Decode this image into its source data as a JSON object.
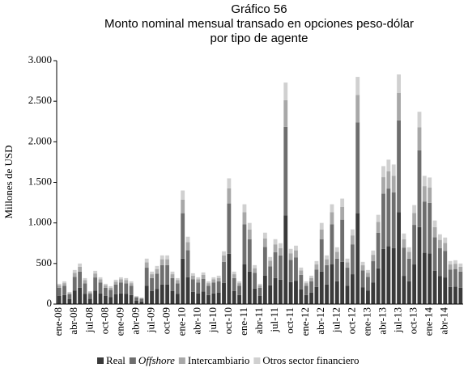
{
  "chart_data": {
    "type": "stacked_bar",
    "title": "Gráfico 56",
    "subtitle": [
      "Monto nominal mensual transado en opciones peso-dólar",
      "por tipo de agente"
    ],
    "y_label": "Millones de USD",
    "categories": [
      "ene-08",
      null,
      null,
      "abr-08",
      null,
      null,
      "jul-08",
      null,
      null,
      "oct-08",
      null,
      null,
      "ene-09",
      null,
      null,
      "abr-09",
      null,
      null,
      "jul-09",
      null,
      null,
      "oct-09",
      null,
      null,
      "ene-10",
      null,
      null,
      "abr-10",
      null,
      null,
      "jul-10",
      null,
      null,
      "oct-10",
      null,
      null,
      "ene-11",
      null,
      null,
      "abr-11",
      null,
      null,
      "jul-11",
      null,
      null,
      "oct-11",
      null,
      null,
      "ene-12",
      null,
      null,
      "abr-12",
      null,
      null,
      "jul-12",
      null,
      null,
      "oct-12",
      null,
      null,
      "ene-13",
      null,
      null,
      "abr-13",
      null,
      null,
      "jul-13",
      null,
      null,
      "oct-13",
      null,
      null,
      "ene-14",
      null,
      null,
      "abr-14",
      null,
      null,
      null
    ],
    "series": [
      {
        "name": "Real",
        "color": "#3a3a3a",
        "values": [
          100,
          112,
          60,
          168,
          200,
          128,
          64,
          164,
          132,
          100,
          88,
          120,
          132,
          128,
          112,
          40,
          32,
          224,
          160,
          188,
          240,
          240,
          160,
          128,
          560,
          332,
          152,
          132,
          156,
          112,
          132,
          140,
          260,
          620,
          160,
          112,
          492,
          400,
          192,
          100,
          352,
          232,
          320,
          300,
          1092,
          272,
          288,
          180,
          112,
          140,
          212,
          400,
          240,
          492,
          280,
          520,
          224,
          368,
          1120,
          208,
          168,
          264,
          440,
          680,
          712,
          688,
          1132,
          348,
          280,
          488,
          948,
          632,
          624,
          412,
          344,
          328,
          212,
          216,
          200
        ]
      },
      {
        "name": "Offshore",
        "color": "#6e6e6e",
        "values": [
          100,
          112,
          60,
          168,
          200,
          128,
          64,
          164,
          132,
          100,
          88,
          120,
          132,
          128,
          112,
          40,
          32,
          224,
          160,
          188,
          240,
          240,
          160,
          128,
          560,
          332,
          152,
          132,
          156,
          112,
          132,
          140,
          260,
          620,
          160,
          112,
          492,
          400,
          192,
          100,
          352,
          232,
          320,
          300,
          1092,
          272,
          288,
          180,
          112,
          140,
          212,
          400,
          240,
          492,
          280,
          520,
          224,
          368,
          1120,
          208,
          168,
          264,
          440,
          680,
          712,
          688,
          1132,
          348,
          280,
          488,
          948,
          632,
          624,
          412,
          344,
          328,
          212,
          216,
          200
        ]
      },
      {
        "name": "Intercambiario",
        "color": "#a8a8a8",
        "values": [
          30,
          34,
          18,
          50,
          60,
          38,
          19,
          49,
          40,
          30,
          26,
          36,
          40,
          38,
          34,
          12,
          10,
          67,
          48,
          56,
          72,
          72,
          48,
          38,
          168,
          100,
          46,
          40,
          47,
          34,
          40,
          42,
          78,
          186,
          48,
          34,
          148,
          120,
          58,
          30,
          106,
          70,
          96,
          90,
          328,
          82,
          86,
          54,
          34,
          42,
          64,
          120,
          72,
          148,
          84,
          156,
          67,
          110,
          336,
          62,
          50,
          79,
          132,
          204,
          214,
          206,
          340,
          104,
          84,
          146,
          284,
          190,
          187,
          124,
          103,
          98,
          64,
          65,
          60
        ]
      },
      {
        "name": "Otros sector financiero",
        "color": "#d0d0d0",
        "values": [
          20,
          22,
          12,
          34,
          40,
          26,
          13,
          33,
          26,
          20,
          18,
          24,
          26,
          26,
          22,
          8,
          6,
          45,
          32,
          38,
          48,
          48,
          32,
          26,
          112,
          66,
          30,
          26,
          31,
          22,
          26,
          28,
          52,
          124,
          32,
          22,
          98,
          80,
          38,
          20,
          70,
          46,
          64,
          60,
          218,
          54,
          58,
          36,
          22,
          28,
          42,
          80,
          48,
          98,
          56,
          104,
          45,
          74,
          224,
          42,
          34,
          53,
          88,
          136,
          142,
          138,
          226,
          70,
          56,
          98,
          190,
          126,
          125,
          82,
          69,
          66,
          42,
          43,
          40
        ]
      }
    ],
    "ylim": [
      0,
      3000
    ],
    "yticks": [
      0,
      500,
      {
        "value": 1000,
        "label": "1.000"
      },
      {
        "value": 1500,
        "label": "1.500"
      },
      {
        "value": 2000,
        "label": "2.000"
      },
      {
        "value": 2500,
        "label": "2.500"
      },
      {
        "value": 3000,
        "label": "3.000"
      }
    ],
    "grid": false
  }
}
